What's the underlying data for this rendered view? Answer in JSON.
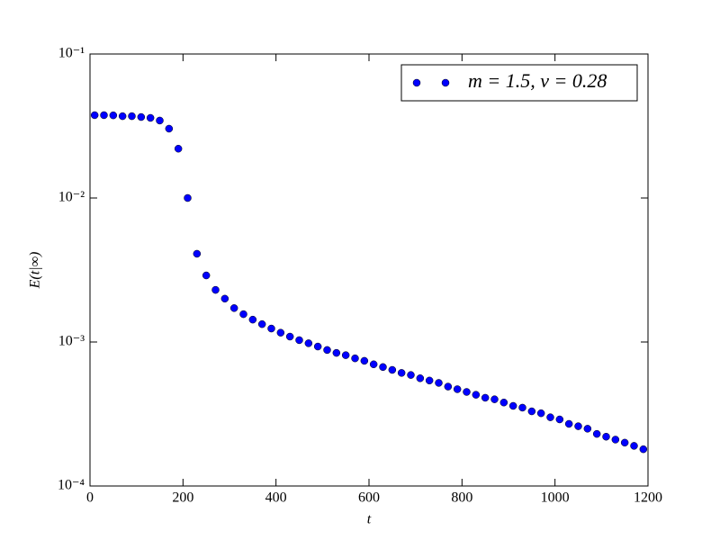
{
  "chart_data": {
    "type": "scatter",
    "xlabel": "t",
    "ylabel": "E(t|∞)",
    "xlim": [
      0,
      1200
    ],
    "ylim": [
      0.0001,
      0.1
    ],
    "log_y": true,
    "legend": "upper right",
    "xticks": [
      0,
      200,
      400,
      600,
      800,
      1000,
      1200
    ],
    "yticks": [
      {
        "value": 0.0001,
        "label": "10⁻⁴"
      },
      {
        "value": 0.001,
        "label": "10⁻³"
      },
      {
        "value": 0.01,
        "label": "10⁻²"
      },
      {
        "value": 0.1,
        "label": "10⁻¹"
      }
    ],
    "series": [
      {
        "name": "m = 1.5, ν = 0.28",
        "color": "#0000ff",
        "x": [
          10,
          30,
          50,
          70,
          90,
          110,
          130,
          150,
          170,
          190,
          210,
          230,
          250,
          270,
          290,
          310,
          330,
          350,
          370,
          390,
          410,
          430,
          450,
          470,
          490,
          510,
          530,
          550,
          570,
          590,
          610,
          630,
          650,
          670,
          690,
          710,
          730,
          750,
          770,
          790,
          810,
          830,
          850,
          870,
          890,
          910,
          930,
          950,
          970,
          990,
          1010,
          1030,
          1050,
          1070,
          1090,
          1110,
          1130,
          1150,
          1170,
          1190
        ],
        "values": [
          0.0376,
          0.0376,
          0.0375,
          0.037,
          0.037,
          0.0365,
          0.036,
          0.0345,
          0.0303,
          0.022,
          0.01,
          0.0041,
          0.0029,
          0.0023,
          0.002,
          0.00172,
          0.00156,
          0.00143,
          0.00133,
          0.00124,
          0.00116,
          0.00109,
          0.00103,
          0.00098,
          0.00093,
          0.00088,
          0.00084,
          0.00081,
          0.00077,
          0.00074,
          0.0007,
          0.00067,
          0.00064,
          0.00061,
          0.00059,
          0.00056,
          0.00054,
          0.00052,
          0.00049,
          0.00047,
          0.00045,
          0.00043,
          0.00041,
          0.0004,
          0.00038,
          0.00036,
          0.00035,
          0.00033,
          0.00032,
          0.0003,
          0.00029,
          0.00027,
          0.00026,
          0.00025,
          0.00023,
          0.00022,
          0.00021,
          0.0002,
          0.00019,
          0.00018
        ]
      }
    ]
  }
}
